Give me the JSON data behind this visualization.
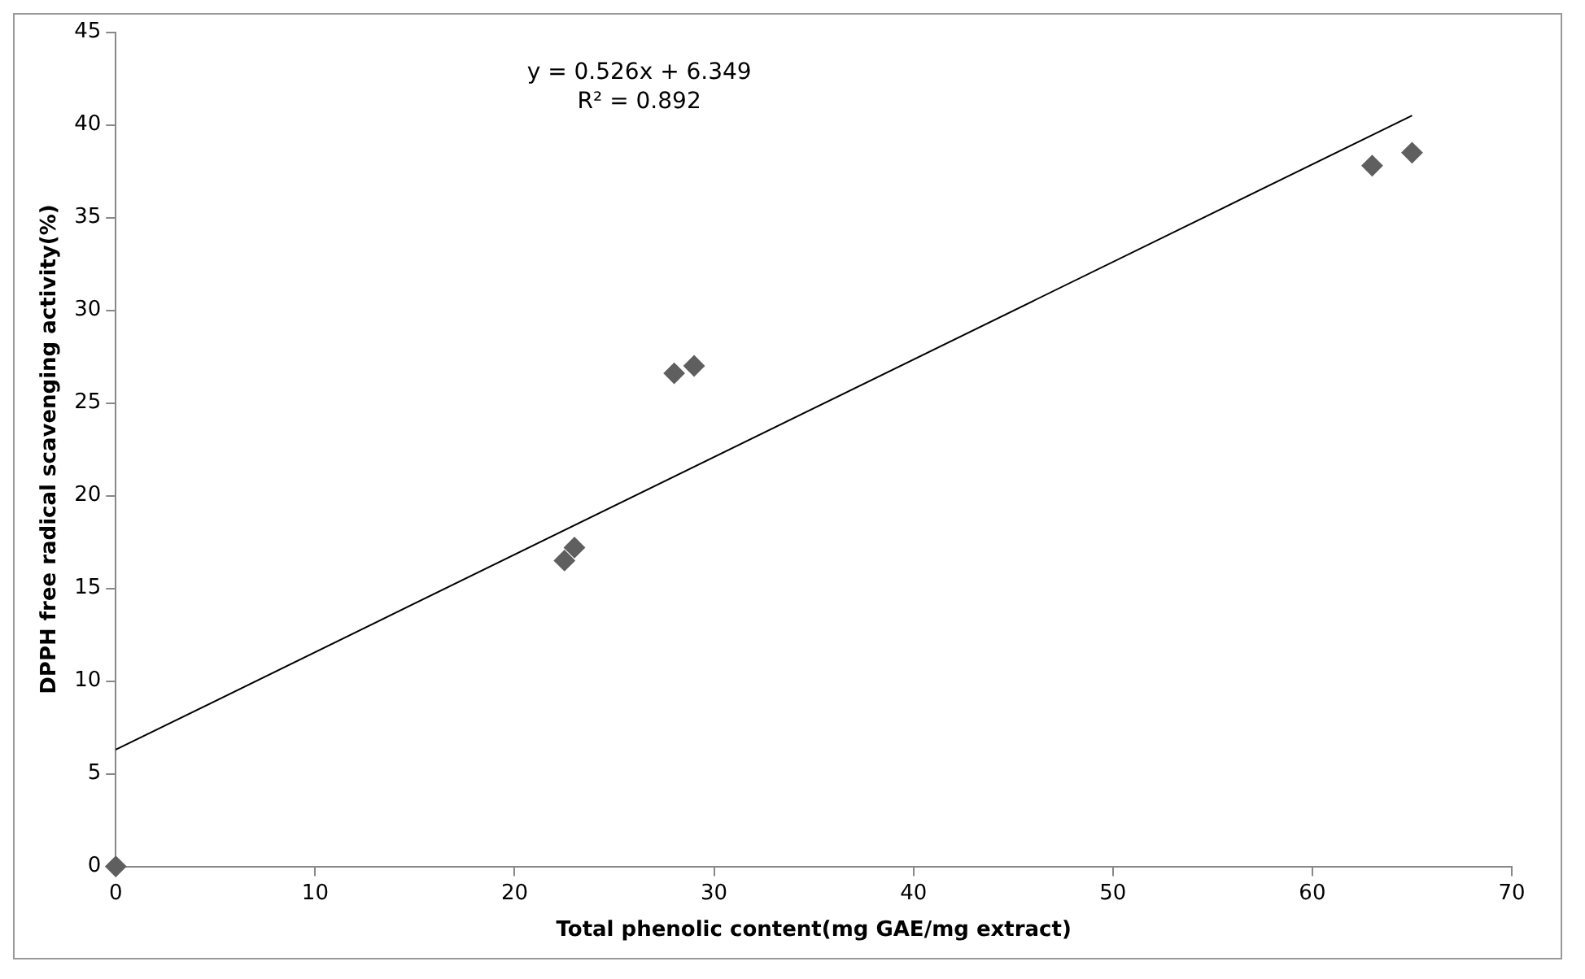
{
  "chart_data": {
    "type": "scatter",
    "xlabel": "Total phenolic content(mg GAE/mg extract)",
    "ylabel": "DPPH free radical scavenging activity(%)",
    "xlim": [
      0,
      70
    ],
    "xticks": [
      0,
      10,
      20,
      30,
      40,
      50,
      60,
      70
    ],
    "ylim": [
      0,
      45
    ],
    "yticks": [
      0,
      5,
      10,
      15,
      20,
      25,
      30,
      35,
      40,
      45
    ],
    "grid": false,
    "legend": false,
    "marker": "diamond",
    "series": [
      {
        "color": "#5f5f5f",
        "x": [
          0,
          22.5,
          23,
          28,
          29,
          63,
          65
        ],
        "values": [
          0,
          16.5,
          17.2,
          26.6,
          27,
          37.8,
          38.5
        ]
      },
      {
        "type": "line",
        "color": "#000000",
        "marker": "none",
        "x": [
          0,
          65
        ],
        "values": [
          6.3,
          40.5
        ]
      }
    ],
    "annotations": [
      "y = 0.526x + 6.349",
      "R² = 0.892"
    ]
  }
}
